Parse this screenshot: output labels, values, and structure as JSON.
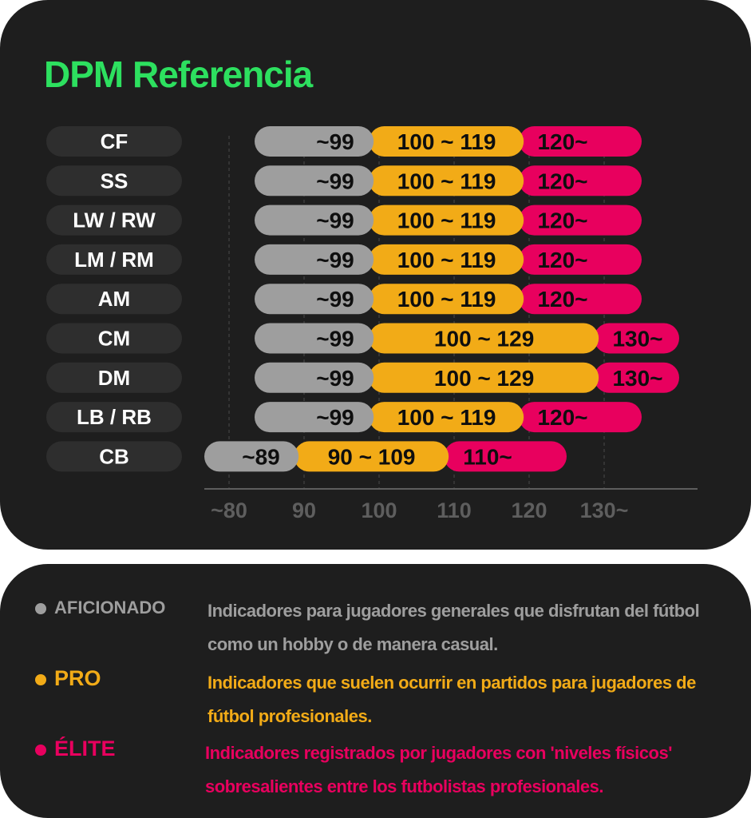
{
  "title": "DPM Referencia",
  "colors": {
    "background": "#1e1e1e",
    "title": "#2de05f",
    "aficionado": "#9e9e9e",
    "pro": "#f2ab17",
    "elite": "#e8005e",
    "axis": "#5e5e5e",
    "label_pill": "#2e2e2e"
  },
  "chart_data": {
    "type": "bar",
    "orientation": "horizontal",
    "stacked": true,
    "x_ticks": [
      "~80",
      "90",
      "100",
      "110",
      "120",
      "130~"
    ],
    "xlim": [
      80,
      130
    ],
    "categories": [
      "CF",
      "SS",
      "LW / RW",
      "LM / RM",
      "AM",
      "CM",
      "DM",
      "LB / RB",
      "CB"
    ],
    "series": [
      {
        "name": "AFICIONADO",
        "color": "#9e9e9e",
        "labels": [
          "~99",
          "~99",
          "~99",
          "~99",
          "~99",
          "~99",
          "~99",
          "~99",
          "~89"
        ],
        "ranges": [
          [
            80,
            99
          ],
          [
            80,
            99
          ],
          [
            80,
            99
          ],
          [
            80,
            99
          ],
          [
            80,
            99
          ],
          [
            80,
            99
          ],
          [
            80,
            99
          ],
          [
            80,
            99
          ],
          [
            80,
            89
          ]
        ]
      },
      {
        "name": "PRO",
        "color": "#f2ab17",
        "labels": [
          "100 ~ 119",
          "100 ~ 119",
          "100 ~ 119",
          "100 ~ 119",
          "100 ~ 119",
          "100 ~ 129",
          "100 ~ 129",
          "100 ~ 119",
          "90 ~ 109"
        ],
        "ranges": [
          [
            100,
            119
          ],
          [
            100,
            119
          ],
          [
            100,
            119
          ],
          [
            100,
            119
          ],
          [
            100,
            119
          ],
          [
            100,
            129
          ],
          [
            100,
            129
          ],
          [
            100,
            119
          ],
          [
            90,
            109
          ]
        ]
      },
      {
        "name": "ÉLITE",
        "color": "#e8005e",
        "labels": [
          "120~",
          "120~",
          "120~",
          "120~",
          "120~",
          "130~",
          "130~",
          "120~",
          "110~"
        ],
        "ranges": [
          [
            120,
            135
          ],
          [
            120,
            135
          ],
          [
            120,
            135
          ],
          [
            120,
            135
          ],
          [
            120,
            135
          ],
          [
            130,
            140
          ],
          [
            130,
            140
          ],
          [
            120,
            135
          ],
          [
            110,
            125
          ]
        ]
      }
    ],
    "grid": true
  },
  "legend": [
    {
      "name": "AFICIONADO",
      "color": "#9e9e9e",
      "desc": "Indicadores para jugadores generales que disfrutan del fútbol como un hobby o de manera casual."
    },
    {
      "name": "PRO",
      "color": "#f2ab17",
      "desc": "Indicadores que suelen ocurrir en partidos para jugadores de fútbol profesionales."
    },
    {
      "name": "ÉLITE",
      "color": "#e8005e",
      "desc": "Indicadores registrados por jugadores con 'niveles físicos' sobresalientes entre los futbolistas profesionales."
    }
  ]
}
